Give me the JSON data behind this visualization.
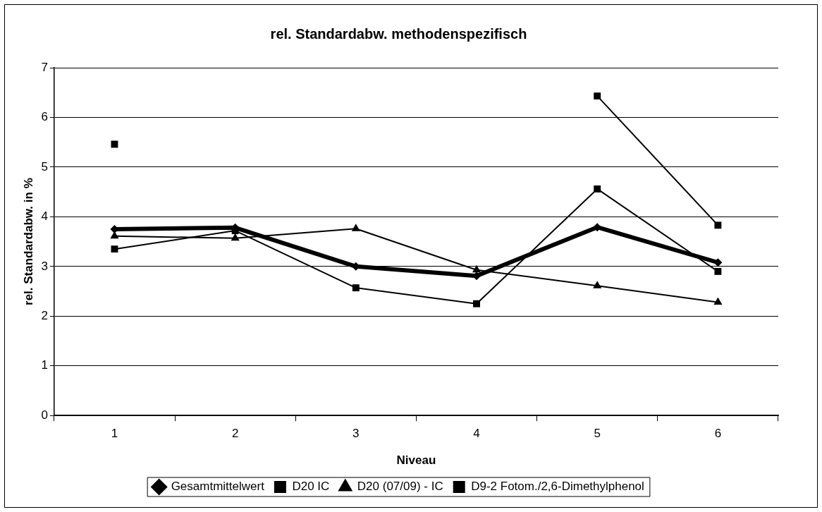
{
  "chart_data": {
    "type": "line",
    "title": "rel. Standardabw. methodenspezifisch",
    "xlabel": "Niveau",
    "ylabel": "rel. Standardabw. in %",
    "categories": [
      "1",
      "2",
      "3",
      "4",
      "5",
      "6"
    ],
    "series": [
      {
        "name": "Gesamtmittelwert",
        "color": "#000000",
        "marker": "diamond",
        "values": [
          3.75,
          3.78,
          3.0,
          2.81,
          3.79,
          3.08
        ]
      },
      {
        "name": "D20 IC",
        "color": "#000000",
        "marker": "square",
        "values": [
          3.35,
          3.72,
          2.57,
          2.25,
          4.56,
          2.9
        ]
      },
      {
        "name": "D20 (07/09) - IC",
        "color": "#000000",
        "marker": "triangle",
        "values": [
          3.61,
          3.57,
          3.76,
          2.93,
          2.61,
          2.28
        ]
      },
      {
        "name": "D9-2 Fotom./2,6-Dimethylphenol",
        "color": "#000000",
        "marker": "square",
        "values": [
          5.46,
          null,
          null,
          null,
          6.43,
          3.83
        ]
      }
    ],
    "ylim": [
      0,
      7
    ],
    "yticks": [
      0,
      1,
      2,
      3,
      4,
      5,
      6,
      7
    ],
    "grid": "y",
    "legend": "bottom",
    "line_style": "solid"
  }
}
